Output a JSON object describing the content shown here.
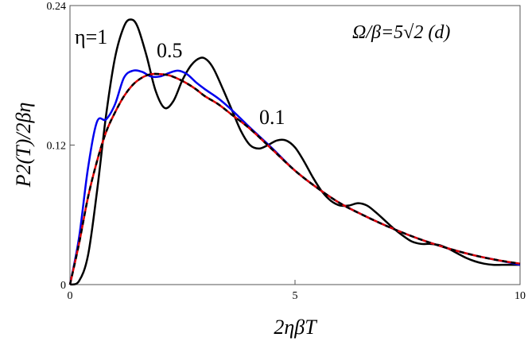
{
  "chart_data": {
    "type": "line",
    "title": "",
    "xlabel": "2ηβT",
    "ylabel": "P2(T)/2βη",
    "xlim": [
      0,
      10
    ],
    "ylim": [
      0,
      0.24
    ],
    "x_ticks": [
      {
        "value": 0,
        "label": "0"
      },
      {
        "value": 5,
        "label": "5"
      },
      {
        "value": 10,
        "label": "10"
      }
    ],
    "y_ticks": [
      {
        "value": 0,
        "label": "0"
      },
      {
        "value": 0.12,
        "label": "0.12"
      },
      {
        "value": 0.24,
        "label": "0.24"
      }
    ],
    "annotations": {
      "eta1": "η=1",
      "eta05": "0.5",
      "eta01": "0.1",
      "panel": "Ω/β=5√2  (d)"
    },
    "series": [
      {
        "color": "#000000",
        "dash": "solid",
        "x": [
          0,
          0.2,
          0.4,
          0.6,
          0.8,
          1.0,
          1.2,
          1.35,
          1.5,
          1.7,
          1.9,
          2.1,
          2.3,
          2.5,
          2.7,
          2.9,
          3.05,
          3.2,
          3.4,
          3.6,
          3.8,
          4.0,
          4.2,
          4.4,
          4.6,
          4.8,
          5.0,
          5.2,
          5.4,
          5.6,
          5.8,
          6.0,
          6.2,
          6.4,
          6.6,
          6.8,
          7.0,
          7.2,
          7.4,
          7.6,
          7.8,
          8.0,
          8.2,
          8.4,
          8.6,
          8.8,
          9.0,
          9.2,
          9.4,
          9.6,
          9.8,
          10.0
        ],
        "y": [
          0,
          0.003,
          0.025,
          0.08,
          0.145,
          0.195,
          0.222,
          0.228,
          0.222,
          0.197,
          0.167,
          0.152,
          0.158,
          0.176,
          0.189,
          0.195,
          0.193,
          0.185,
          0.168,
          0.15,
          0.132,
          0.12,
          0.117,
          0.12,
          0.124,
          0.124,
          0.118,
          0.106,
          0.092,
          0.08,
          0.072,
          0.068,
          0.068,
          0.07,
          0.068,
          0.062,
          0.055,
          0.048,
          0.042,
          0.037,
          0.035,
          0.035,
          0.034,
          0.031,
          0.027,
          0.023,
          0.02,
          0.018,
          0.017,
          0.017,
          0.017,
          0.017
        ]
      },
      {
        "color": "#0000ee",
        "dash": "solid",
        "x": [
          0,
          0.2,
          0.4,
          0.6,
          0.8,
          1.0,
          1.2,
          1.4,
          1.6,
          1.8,
          2.0,
          2.2,
          2.4,
          2.6,
          2.8,
          3.0,
          3.3,
          3.6,
          4.0,
          4.5,
          5.0,
          5.5,
          6.0,
          6.5,
          7.0,
          7.5,
          8.0,
          8.5,
          9.0,
          9.5,
          10.0
        ],
        "y": [
          0,
          0.04,
          0.1,
          0.14,
          0.142,
          0.155,
          0.178,
          0.184,
          0.183,
          0.179,
          0.179,
          0.182,
          0.184,
          0.181,
          0.174,
          0.168,
          0.16,
          0.15,
          0.135,
          0.117,
          0.098,
          0.083,
          0.07,
          0.06,
          0.051,
          0.043,
          0.036,
          0.03,
          0.025,
          0.021,
          0.017
        ]
      },
      {
        "color": "#dd0000",
        "dash": "solid",
        "x": [
          0,
          0.2,
          0.4,
          0.6,
          0.8,
          1.0,
          1.2,
          1.4,
          1.6,
          1.8,
          2.0,
          2.2,
          2.4,
          2.6,
          2.8,
          3.0,
          3.3,
          3.6,
          4.0,
          4.5,
          5.0,
          5.5,
          6.0,
          6.5,
          7.0,
          7.5,
          8.0,
          8.5,
          9.0,
          9.5,
          10.0
        ],
        "y": [
          0,
          0.035,
          0.075,
          0.106,
          0.131,
          0.148,
          0.162,
          0.172,
          0.178,
          0.181,
          0.181,
          0.18,
          0.177,
          0.173,
          0.168,
          0.162,
          0.155,
          0.146,
          0.134,
          0.116,
          0.098,
          0.083,
          0.07,
          0.06,
          0.051,
          0.043,
          0.036,
          0.03,
          0.025,
          0.021,
          0.018
        ]
      },
      {
        "color": "#000000",
        "dash": "dashed",
        "x": [
          0,
          0.2,
          0.4,
          0.6,
          0.8,
          1.0,
          1.2,
          1.4,
          1.6,
          1.8,
          2.0,
          2.2,
          2.4,
          2.6,
          2.8,
          3.0,
          3.3,
          3.6,
          4.0,
          4.5,
          5.0,
          5.5,
          6.0,
          6.5,
          7.0,
          7.5,
          8.0,
          8.5,
          9.0,
          9.5,
          10.0
        ],
        "y": [
          0,
          0.035,
          0.075,
          0.106,
          0.131,
          0.148,
          0.162,
          0.172,
          0.178,
          0.181,
          0.181,
          0.18,
          0.177,
          0.173,
          0.168,
          0.162,
          0.155,
          0.146,
          0.134,
          0.116,
          0.098,
          0.083,
          0.07,
          0.06,
          0.051,
          0.043,
          0.036,
          0.03,
          0.025,
          0.021,
          0.018
        ]
      }
    ]
  }
}
